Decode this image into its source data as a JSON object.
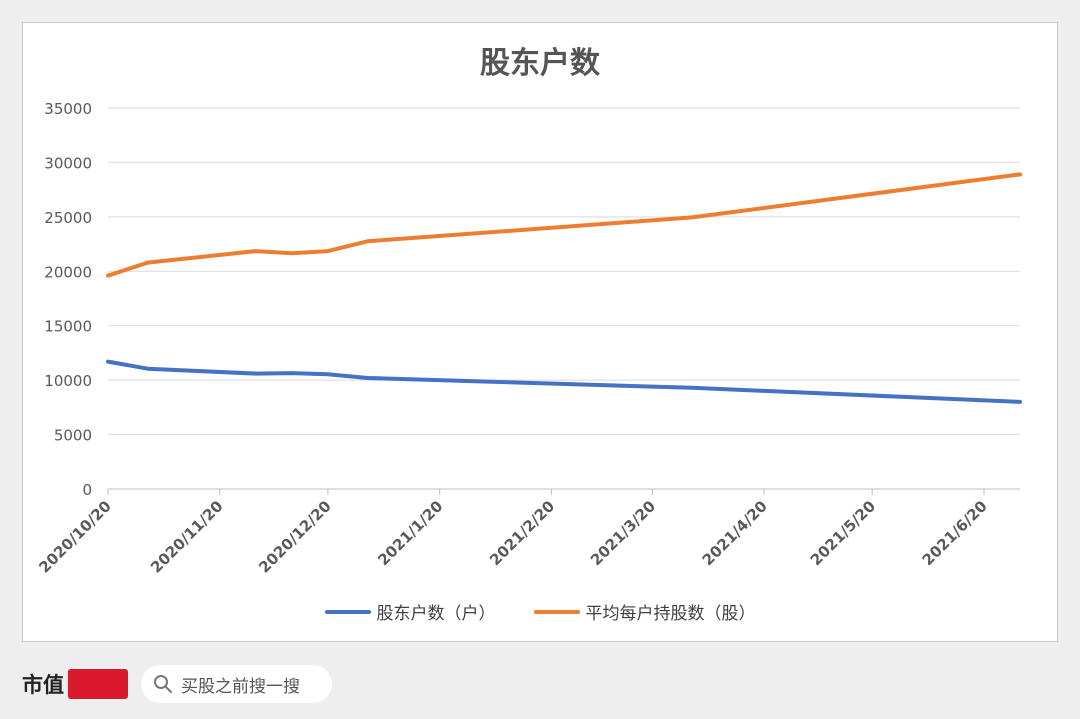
{
  "chart_data": {
    "type": "line",
    "title": "股东户数",
    "x": [
      "2020/10/20",
      "2020/11/20",
      "2020/12/20",
      "2021/1/20",
      "2021/2/20",
      "2021/3/20",
      "2021/4/20",
      "2021/5/20",
      "2021/6/20"
    ],
    "ylim": [
      0,
      35000
    ],
    "yticks": [
      "0",
      "5000",
      "10000",
      "15000",
      "20000",
      "25000",
      "30000",
      "35000"
    ],
    "grid": true,
    "legend_position": "bottom",
    "series": [
      {
        "name": "股东户数（户）",
        "color": "#4472c4",
        "points": [
          [
            "2020/10/20",
            11700
          ],
          [
            "2020/10/31",
            11050
          ],
          [
            "2020/11/30",
            10600
          ],
          [
            "2020/12/10",
            10650
          ],
          [
            "2020/12/20",
            10550
          ],
          [
            "2020/12/31",
            10200
          ],
          [
            "2021/3/31",
            9300
          ],
          [
            "2021/6/30",
            8000
          ]
        ]
      },
      {
        "name": "平均每户持股数（股）",
        "color": "#ed7d31",
        "points": [
          [
            "2020/10/20",
            19600
          ],
          [
            "2020/10/31",
            20800
          ],
          [
            "2020/11/30",
            21850
          ],
          [
            "2020/12/10",
            21650
          ],
          [
            "2020/12/20",
            21850
          ],
          [
            "2020/12/31",
            22750
          ],
          [
            "2021/3/31",
            24950
          ],
          [
            "2021/6/30",
            28900
          ]
        ]
      }
    ]
  },
  "footer": {
    "brand": "市值",
    "search_text": "买股之前搜一搜",
    "search_icon": "search-icon",
    "watermark": "市值风云"
  }
}
